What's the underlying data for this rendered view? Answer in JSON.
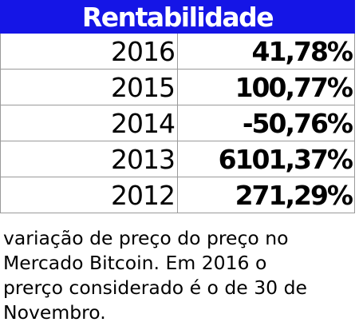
{
  "table": {
    "header": "Rentabilidade",
    "rows": [
      {
        "year": "2016",
        "value": "41,78%"
      },
      {
        "year": "2015",
        "value": "100,77%"
      },
      {
        "year": "2014",
        "value": "-50,76%"
      },
      {
        "year": "2013",
        "value": "6101,37%"
      },
      {
        "year": "2012",
        "value": "271,29%"
      }
    ]
  },
  "note": {
    "lines": [
      "variação de preço do preço no",
      "Mercado Bitcoin. Em 2016 o",
      "prerço considerado é o de 30 de",
      "Novembro."
    ]
  }
}
